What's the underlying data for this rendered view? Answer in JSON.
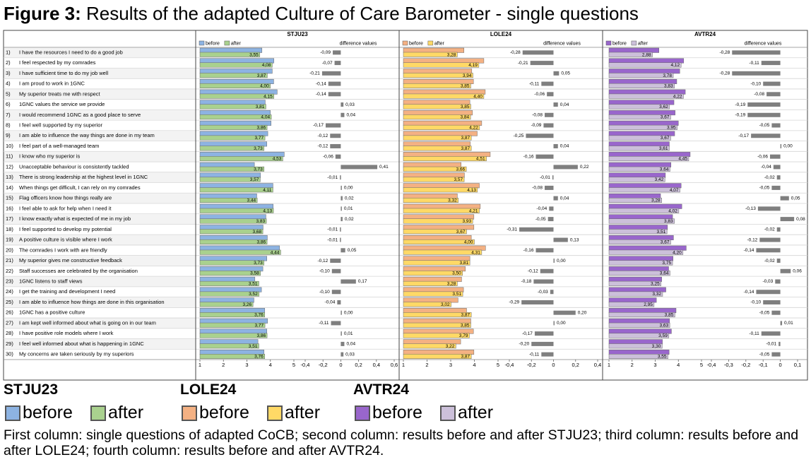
{
  "figure": {
    "label": "Figure 3:",
    "title": "Results of the adapted Culture of Care Barometer - single questions"
  },
  "questions": [
    {
      "number": "1)",
      "text": "I have the resources I need to do a good job"
    },
    {
      "number": "2)",
      "text": "I feel respected by my comrades"
    },
    {
      "number": "3)",
      "text": "I have sufficient time to do my job well"
    },
    {
      "number": "4)",
      "text": "I am proud to work in 1GNC"
    },
    {
      "number": "5)",
      "text": "My superior treats me with respect"
    },
    {
      "number": "6)",
      "text": "1GNC values the service we provide"
    },
    {
      "number": "7)",
      "text": "I would recommend 1GNC as a good place to serve"
    },
    {
      "number": "8)",
      "text": "I feel well supported by my superior"
    },
    {
      "number": "9)",
      "text": "I am able to influence the way things are done in my team"
    },
    {
      "number": "10)",
      "text": "I feel part of a well-managed team"
    },
    {
      "number": "11)",
      "text": "I know who my superior is"
    },
    {
      "number": "12)",
      "text": "Unacceptable behaviour is consistently tackled"
    },
    {
      "number": "13)",
      "text": "There is strong leadership at the highest level in 1GNC"
    },
    {
      "number": "14)",
      "text": "When things get difficult, I can rely on my comrades"
    },
    {
      "number": "15)",
      "text": "Flag officers know how things really are"
    },
    {
      "number": "16)",
      "text": "I feel able to ask for help when I need it"
    },
    {
      "number": "17)",
      "text": "I know exactly what is expected of me in my job"
    },
    {
      "number": "18)",
      "text": "I feel supported to develop my potential"
    },
    {
      "number": "19)",
      "text": "A positive culture is visible where I work"
    },
    {
      "number": "20)",
      "text": "The comrades I work with are friendly"
    },
    {
      "number": "21)",
      "text": "My superior gives me constructive feedback"
    },
    {
      "number": "22)",
      "text": "Staff successes are celebrated by the organisation"
    },
    {
      "number": "23)",
      "text": "1GNC listens to staff views"
    },
    {
      "number": "24)",
      "text": "I get the training and development I need"
    },
    {
      "number": "25)",
      "text": "I am able to influence how things are done in this organisation"
    },
    {
      "number": "26)",
      "text": "1GNC has a positive culture"
    },
    {
      "number": "27)",
      "text": "I am kept well informed about what is going on in our team"
    },
    {
      "number": "28)",
      "text": "I have positive role models where I work"
    },
    {
      "number": "29)",
      "text": "I feel well informed about what is happening in 1GNC"
    },
    {
      "number": "30)",
      "text": "My concerns are taken seriously by my superiors"
    }
  ],
  "chart_data": [
    {
      "type": "bar",
      "title": "STJU23",
      "xlim": [
        1,
        5
      ],
      "xticks": [
        1,
        2,
        3,
        4,
        5
      ],
      "series": [
        {
          "name": "before",
          "color": "#8db3e2",
          "values": [
            3.64,
            4.15,
            4.08,
            4.14,
            4.29,
            3.78,
            4.0,
            4.03,
            3.89,
            3.85,
            4.59,
            3.32,
            3.58,
            4.11,
            3.42,
            4.12,
            3.81,
            3.69,
            3.87,
            4.39,
            3.85,
            3.68,
            3.34,
            3.62,
            3.3,
            3.76,
            3.88,
            3.85,
            3.47,
            3.73
          ]
        },
        {
          "name": "after",
          "color": "#a9d18e",
          "values": [
            3.55,
            4.08,
            3.87,
            4.0,
            4.15,
            3.81,
            4.04,
            3.86,
            3.77,
            3.73,
            4.53,
            3.73,
            3.57,
            4.11,
            3.44,
            4.13,
            3.83,
            3.68,
            3.86,
            4.44,
            3.73,
            3.58,
            3.51,
            3.52,
            3.26,
            3.76,
            3.77,
            3.86,
            3.51,
            3.76
          ],
          "value_labels": [
            "3,55",
            "4,08",
            "3,87",
            "4,00",
            "4,15",
            "3,81",
            "4,04",
            "3,86",
            "3,77",
            "3,73",
            "4,53",
            "3,73",
            "3,57",
            "4,11",
            "3,44",
            "4,13",
            "3,83",
            "3,68",
            "3,86",
            "4,44",
            "3,73",
            "3,58",
            "3,51",
            "3,52",
            "3,26",
            "3,76",
            "3,77",
            "3,86",
            "3,51",
            "3,76"
          ]
        }
      ]
    },
    {
      "type": "bar",
      "title": "difference values",
      "color": "#7f7f7f",
      "xlim": [
        -0.4,
        0.6
      ],
      "xticks": [
        {
          "value": -0.4,
          "label": "-0,4"
        },
        {
          "value": -0.2,
          "label": "-0,2"
        },
        0,
        {
          "value": 0.2,
          "label": "0,2"
        },
        {
          "value": 0.4,
          "label": "0,4"
        },
        {
          "value": 0.6,
          "label": "0,6"
        }
      ],
      "values": [
        -0.09,
        -0.07,
        -0.21,
        -0.14,
        -0.14,
        0.03,
        0.04,
        -0.17,
        -0.12,
        -0.12,
        -0.06,
        0.41,
        -0.01,
        0.0,
        0.02,
        0.01,
        0.02,
        -0.01,
        -0.01,
        0.05,
        -0.12,
        -0.1,
        0.17,
        -0.1,
        -0.04,
        0.0,
        -0.11,
        0.01,
        0.04,
        0.03
      ],
      "value_labels": [
        "-0,09",
        "-0,07",
        "-0,21",
        "-0,14",
        "-0,14",
        "0,03",
        "0,04",
        "-0,17",
        "-0,12",
        "-0,12",
        "-0,06",
        "0,41",
        "-0,01",
        "0,00",
        "0,02",
        "0,01",
        "0,02",
        "-0,01",
        "-0,01",
        "0,05",
        "-0,12",
        "-0,10",
        "0,17",
        "-0,10",
        "-0,04",
        "0,00",
        "-0,11",
        "0,01",
        "0,04",
        "0,03"
      ]
    },
    {
      "type": "bar",
      "title": "LOLE24",
      "xlim": [
        1,
        5
      ],
      "xticks": [
        1,
        2,
        3,
        4,
        5
      ],
      "series": [
        {
          "name": "before",
          "color": "#f4b183",
          "values": [
            3.56,
            4.4,
            3.89,
            3.96,
            4.46,
            3.81,
            3.92,
            4.31,
            4.12,
            3.83,
            4.67,
            3.44,
            3.58,
            4.21,
            3.28,
            4.25,
            3.98,
            3.98,
            3.87,
            4.47,
            3.81,
            3.62,
            3.46,
            3.54,
            3.31,
            3.67,
            3.85,
            3.96,
            3.42,
            3.98
          ]
        },
        {
          "name": "after",
          "color": "#ffd966",
          "values": [
            3.28,
            4.19,
            3.94,
            3.85,
            4.4,
            3.85,
            3.84,
            4.22,
            3.87,
            3.87,
            4.51,
            3.66,
            3.57,
            4.13,
            3.32,
            4.21,
            3.93,
            3.67,
            4.0,
            4.31,
            3.81,
            3.5,
            3.28,
            3.51,
            3.02,
            3.87,
            3.85,
            3.79,
            3.22,
            3.87
          ],
          "value_labels": [
            "3,28",
            "4,19",
            "3,94",
            "3,85",
            "4,40",
            "3,85",
            "3,84",
            "4,22",
            "3,87",
            "3,87",
            "4,51",
            "3,66",
            "3,57",
            "4,13",
            "3,32",
            "4,21",
            "3,93",
            "3,67",
            "4,00",
            "4,31",
            "3,81",
            "3,50",
            "3,28",
            "3,51",
            "3,02",
            "3,87",
            "3,85",
            "3,79",
            "3,22",
            "3,87"
          ]
        }
      ]
    },
    {
      "type": "bar",
      "title": "difference values",
      "color": "#7f7f7f",
      "xlim": [
        -0.4,
        0.4
      ],
      "xticks": [
        {
          "value": -0.4,
          "label": "-0,4"
        },
        {
          "value": -0.2,
          "label": "-0,2"
        },
        0,
        {
          "value": 0.2,
          "label": "0,2"
        },
        {
          "value": 0.4,
          "label": "0,4"
        }
      ],
      "values": [
        -0.28,
        -0.21,
        0.05,
        -0.11,
        -0.06,
        0.04,
        -0.08,
        -0.09,
        -0.25,
        0.04,
        -0.16,
        0.22,
        -0.01,
        -0.08,
        0.04,
        -0.04,
        -0.05,
        -0.31,
        0.13,
        -0.16,
        0.0,
        -0.12,
        -0.18,
        -0.03,
        -0.29,
        0.2,
        0.0,
        -0.17,
        -0.2,
        -0.11
      ],
      "value_labels": [
        "-0,28",
        "-0,21",
        "0,05",
        "-0,11",
        "-0,06",
        "0,04",
        "-0,08",
        "-0,09",
        "-0,25",
        "0,04",
        "-0,16",
        "0,22",
        "-0,01",
        "-0,08",
        "0,04",
        "-0,04",
        "-0,05",
        "-0,31",
        "0,13",
        "-0,16",
        "0,00",
        "-0,12",
        "-0,18",
        "-0,03",
        "-0,29",
        "0,20",
        "0,00",
        "-0,17",
        "-0,20",
        "-0,11"
      ]
    },
    {
      "type": "bar",
      "title": "AVTR24",
      "xlim": [
        1,
        5
      ],
      "xticks": [
        1,
        2,
        3,
        4,
        5
      ],
      "series": [
        {
          "name": "before",
          "color": "#9966cc",
          "values": [
            3.16,
            4.23,
            4.06,
            3.93,
            4.3,
            3.81,
            3.86,
            4.0,
            3.84,
            3.61,
            4.51,
            3.68,
            3.44,
            4.12,
            3.23,
            4.15,
            3.75,
            3.53,
            3.79,
            4.34,
            3.77,
            3.58,
            3.28,
            3.46,
            3.05,
            3.9,
            3.62,
            3.7,
            3.31,
            3.6
          ]
        },
        {
          "name": "after",
          "color": "#ccc0da",
          "values": [
            2.88,
            4.12,
            3.78,
            3.83,
            4.22,
            3.62,
            3.67,
            3.95,
            3.67,
            3.61,
            4.45,
            3.64,
            3.42,
            4.07,
            3.28,
            4.02,
            3.83,
            3.51,
            3.67,
            4.2,
            3.75,
            3.64,
            3.25,
            3.32,
            2.95,
            3.85,
            3.63,
            3.59,
            3.3,
            3.55
          ],
          "value_labels": [
            "2,88",
            "4,12",
            "3,78",
            "3,83",
            "4,22",
            "3,62",
            "3,67",
            "3,95",
            "3,67",
            "3,61",
            "4,45",
            "3,64",
            "3,42",
            "4,07",
            "3,28",
            "4,02",
            "3,83",
            "3,51",
            "3,67",
            "4,20",
            "3,75",
            "3,64",
            "3,25",
            "3,32",
            "2,95",
            "3,85",
            "3,63",
            "3,59",
            "3,30",
            "3,55"
          ]
        }
      ]
    },
    {
      "type": "bar",
      "title": "difference values",
      "color": "#7f7f7f",
      "xlim": [
        -0.4,
        0.1
      ],
      "xticks": [
        {
          "value": -0.4,
          "label": "-0,4"
        },
        {
          "value": -0.3,
          "label": "-0,3"
        },
        {
          "value": -0.2,
          "label": "-0,2"
        },
        {
          "value": -0.1,
          "label": "-0,1"
        },
        0,
        {
          "value": 0.1,
          "label": "0,1"
        }
      ],
      "values": [
        -0.28,
        -0.11,
        -0.28,
        -0.1,
        -0.08,
        -0.19,
        -0.19,
        -0.05,
        -0.17,
        0.0,
        -0.06,
        -0.04,
        -0.02,
        -0.05,
        0.05,
        -0.13,
        0.08,
        -0.02,
        -0.12,
        -0.14,
        -0.02,
        0.06,
        -0.03,
        -0.14,
        -0.1,
        -0.05,
        0.01,
        -0.11,
        -0.01,
        -0.05
      ],
      "value_labels": [
        "-0,28",
        "-0,11",
        "-0,28",
        "-0,10",
        "-0,08",
        "-0,19",
        "-0,19",
        "-0,05",
        "-0,17",
        "0,00",
        "-0,06",
        "-0,04",
        "-0,02",
        "-0,05",
        "0,05",
        "-0,13",
        "0,08",
        "-0,02",
        "-0,12",
        "-0,14",
        "-0,02",
        "0,06",
        "-0,03",
        "-0,14",
        "-0,10",
        "-0,05",
        "0,01",
        "-0,11",
        "-0,01",
        "-0,05"
      ]
    }
  ],
  "caption": "First column: single questions of adapted CoCB; second column: results before and after STJU23; third column: results before and after LOLE24; fourth column: results before and after AVTR24."
}
